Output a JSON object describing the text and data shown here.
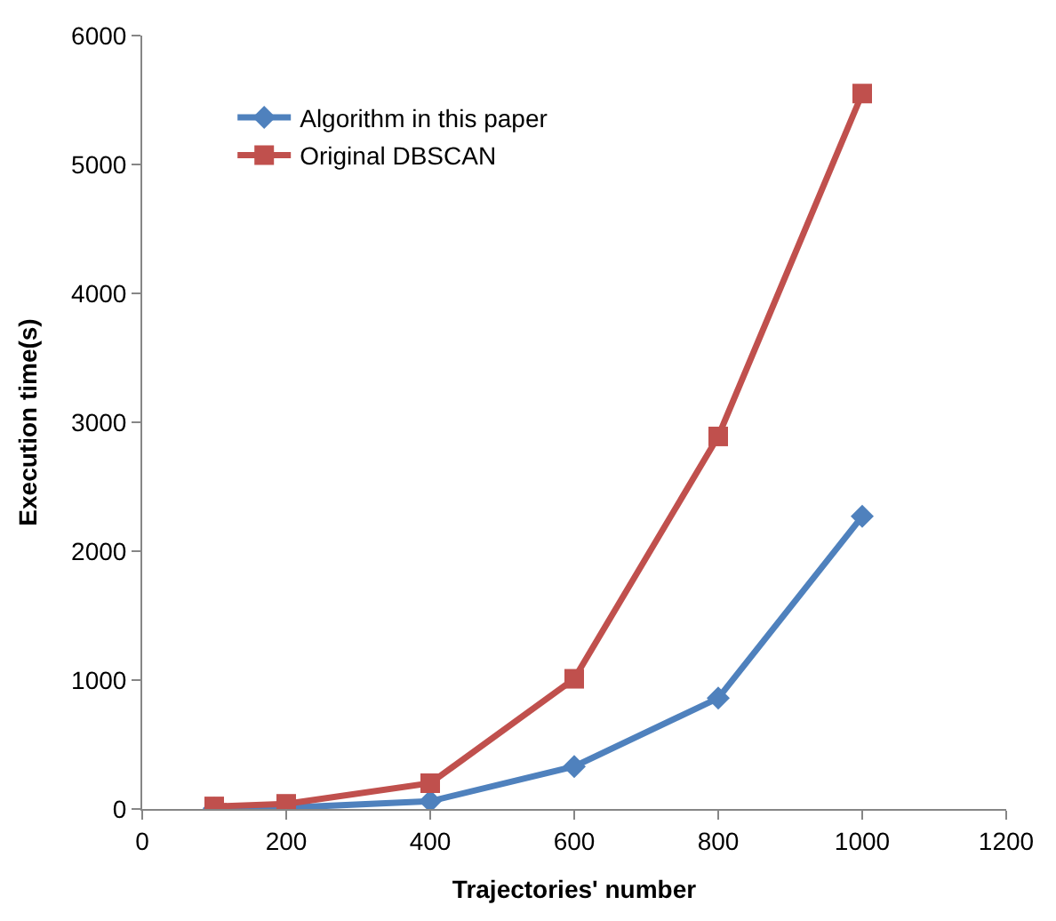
{
  "chart_data": {
    "type": "line",
    "xlabel": "Trajectories' number",
    "ylabel": "Execution time(s)",
    "x": [
      100,
      200,
      400,
      600,
      800,
      1000
    ],
    "series": [
      {
        "name": "Algorithm in this paper",
        "color": "#4f81bd",
        "marker": "diamond",
        "values": [
          5,
          10,
          60,
          330,
          860,
          2270
        ]
      },
      {
        "name": "Original DBSCAN",
        "color": "#c0504d",
        "marker": "square",
        "values": [
          20,
          40,
          200,
          1010,
          2890,
          5550
        ]
      }
    ],
    "xlim": [
      0,
      1200
    ],
    "xticks": [
      0,
      200,
      400,
      600,
      800,
      1000,
      1200
    ],
    "ylim": [
      0,
      6000
    ],
    "yticks": [
      0,
      1000,
      2000,
      3000,
      4000,
      5000,
      6000
    ],
    "grid": false,
    "legend": "top left",
    "line_style": "solid"
  }
}
